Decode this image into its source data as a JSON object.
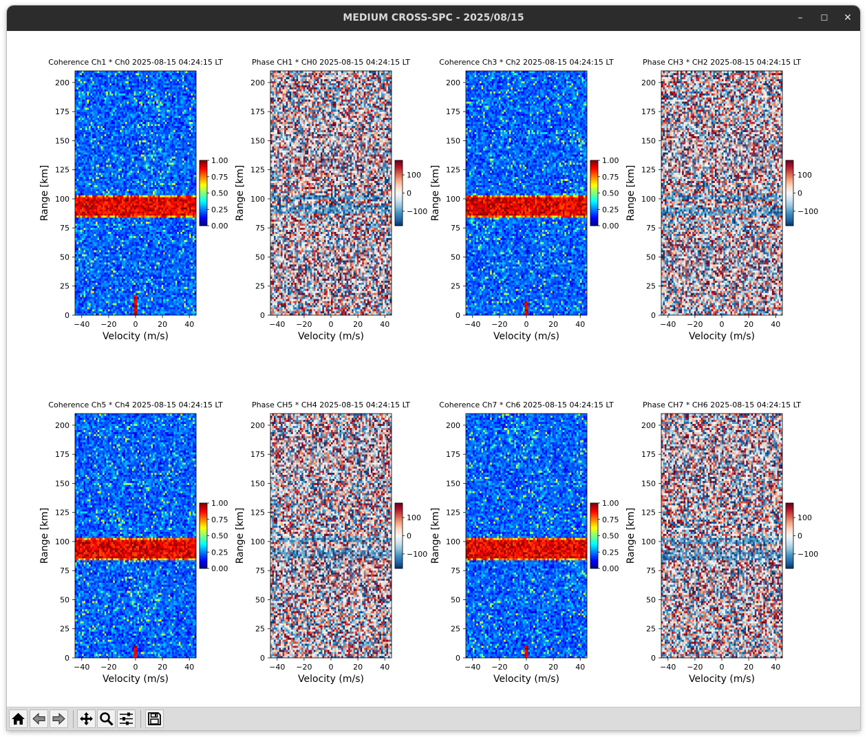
{
  "window": {
    "title": "MEDIUM CROSS-SPC - 2025/08/15",
    "controls": {
      "minimize": "–",
      "maximize": "☐",
      "close": "✕"
    }
  },
  "toolbar": {
    "buttons": [
      "home-icon",
      "back-arrow-icon",
      "forward-arrow-icon",
      "pan-icon",
      "zoom-icon",
      "configure-subplots-icon",
      "save-icon"
    ]
  },
  "colors": {
    "titlebar": "#2c2c2c",
    "toolbar": "#dcdcdc",
    "coherence_colormap": "jet",
    "phase_colormap": "RdBu_r"
  },
  "chart_data": [
    {
      "type": "heatmap",
      "kind": "coherence",
      "title": "Coherence Ch1 * Ch0 2025-08-15 04:24:15 LT",
      "xlabel": "Velocity (m/s)",
      "ylabel": "Range [km]",
      "xlim": [
        -45,
        45
      ],
      "ylim": [
        0,
        210
      ],
      "xticks": [
        -40,
        -20,
        0,
        20,
        40
      ],
      "yticks": [
        0,
        25,
        50,
        75,
        100,
        125,
        150,
        175,
        200
      ],
      "colorbar": {
        "range": [
          0,
          1
        ],
        "ticks": [
          0.0,
          0.25,
          0.5,
          0.75,
          1.0
        ],
        "tick_labels": [
          "0.00",
          "0.25",
          "0.50",
          "0.75",
          "1.00"
        ]
      },
      "features": {
        "coherent_layer_km": [
          84,
          104
        ],
        "zero_velocity_echo_km": [
          0,
          17
        ]
      }
    },
    {
      "type": "heatmap",
      "kind": "phase",
      "title": "Phase CH1 * CH0 2025-08-15 04:24:15 LT",
      "xlabel": "Velocity (m/s)",
      "ylabel": "Range [km]",
      "xlim": [
        -45,
        45
      ],
      "ylim": [
        0,
        210
      ],
      "xticks": [
        -40,
        -20,
        0,
        20,
        40
      ],
      "yticks": [
        0,
        25,
        50,
        75,
        100,
        125,
        150,
        175,
        200
      ],
      "colorbar": {
        "range": [
          -180,
          180
        ],
        "ticks": [
          -100,
          0,
          100
        ],
        "tick_labels": [
          "−100",
          "0",
          "100"
        ]
      },
      "features": {
        "phase_bands_km": [
          [
            88,
            94
          ],
          [
            100,
            104
          ]
        ]
      }
    },
    {
      "type": "heatmap",
      "kind": "coherence",
      "title": "Coherence Ch3 * Ch2 2025-08-15 04:24:15 LT",
      "xlabel": "Velocity (m/s)",
      "ylabel": "Range [km]",
      "xlim": [
        -45,
        45
      ],
      "ylim": [
        0,
        210
      ],
      "xticks": [
        -40,
        -20,
        0,
        20,
        40
      ],
      "yticks": [
        0,
        25,
        50,
        75,
        100,
        125,
        150,
        175,
        200
      ],
      "colorbar": {
        "range": [
          0,
          1
        ],
        "ticks": [
          0.0,
          0.25,
          0.5,
          0.75,
          1.0
        ],
        "tick_labels": [
          "0.00",
          "0.25",
          "0.50",
          "0.75",
          "1.00"
        ]
      },
      "features": {
        "coherent_layer_km": [
          84,
          104
        ],
        "zero_velocity_echo_km": [
          0,
          12
        ]
      }
    },
    {
      "type": "heatmap",
      "kind": "phase",
      "title": "Phase CH3 * CH2 2025-08-15 04:24:15 LT",
      "xlabel": "Velocity (m/s)",
      "ylabel": "Range [km]",
      "xlim": [
        -45,
        45
      ],
      "ylim": [
        0,
        210
      ],
      "xticks": [
        -40,
        -20,
        0,
        20,
        40
      ],
      "yticks": [
        0,
        25,
        50,
        75,
        100,
        125,
        150,
        175,
        200
      ],
      "colorbar": {
        "range": [
          -180,
          180
        ],
        "ticks": [
          -100,
          0,
          100
        ],
        "tick_labels": [
          "−100",
          "0",
          "100"
        ]
      },
      "features": {
        "phase_bands_km": [
          [
            86,
            93
          ],
          [
            100,
            104
          ]
        ]
      }
    },
    {
      "type": "heatmap",
      "kind": "coherence",
      "title": "Coherence Ch5 * Ch4 2025-08-15 04:24:15 LT",
      "xlabel": "Velocity (m/s)",
      "ylabel": "Range [km]",
      "xlim": [
        -45,
        45
      ],
      "ylim": [
        0,
        210
      ],
      "xticks": [
        -40,
        -20,
        0,
        20,
        40
      ],
      "yticks": [
        0,
        25,
        50,
        75,
        100,
        125,
        150,
        175,
        200
      ],
      "colorbar": {
        "range": [
          0,
          1
        ],
        "ticks": [
          0.0,
          0.25,
          0.5,
          0.75,
          1.0
        ],
        "tick_labels": [
          "0.00",
          "0.25",
          "0.50",
          "0.75",
          "1.00"
        ]
      },
      "features": {
        "coherent_layer_km": [
          84,
          104
        ],
        "zero_velocity_echo_km": [
          0,
          10
        ]
      }
    },
    {
      "type": "heatmap",
      "kind": "phase",
      "title": "Phase CH5 * CH4 2025-08-15 04:24:15 LT",
      "xlabel": "Velocity (m/s)",
      "ylabel": "Range [km]",
      "xlim": [
        -45,
        45
      ],
      "ylim": [
        0,
        210
      ],
      "xticks": [
        -40,
        -20,
        0,
        20,
        40
      ],
      "yticks": [
        0,
        25,
        50,
        75,
        100,
        125,
        150,
        175,
        200
      ],
      "colorbar": {
        "range": [
          -180,
          180
        ],
        "ticks": [
          -100,
          0,
          100
        ],
        "tick_labels": [
          "−100",
          "0",
          "100"
        ]
      },
      "features": {
        "phase_bands_km": [
          [
            86,
            92
          ],
          [
            99,
            104
          ]
        ]
      }
    },
    {
      "type": "heatmap",
      "kind": "coherence",
      "title": "Coherence Ch7 * Ch6 2025-08-15 04:24:15 LT",
      "xlabel": "Velocity (m/s)",
      "ylabel": "Range [km]",
      "xlim": [
        -45,
        45
      ],
      "ylim": [
        0,
        210
      ],
      "xticks": [
        -40,
        -20,
        0,
        20,
        40
      ],
      "yticks": [
        0,
        25,
        50,
        75,
        100,
        125,
        150,
        175,
        200
      ],
      "colorbar": {
        "range": [
          0,
          1
        ],
        "ticks": [
          0.0,
          0.25,
          0.5,
          0.75,
          1.0
        ],
        "tick_labels": [
          "0.00",
          "0.25",
          "0.50",
          "0.75",
          "1.00"
        ]
      },
      "features": {
        "coherent_layer_km": [
          84,
          104
        ],
        "zero_velocity_echo_km": [
          0,
          10
        ]
      }
    },
    {
      "type": "heatmap",
      "kind": "phase",
      "title": "Phase CH7 * CH6 2025-08-15 04:24:15 LT",
      "xlabel": "Velocity (m/s)",
      "ylabel": "Range [km]",
      "xlim": [
        -45,
        45
      ],
      "ylim": [
        0,
        210
      ],
      "xticks": [
        -40,
        -20,
        0,
        20,
        40
      ],
      "yticks": [
        0,
        25,
        50,
        75,
        100,
        125,
        150,
        175,
        200
      ],
      "colorbar": {
        "range": [
          -180,
          180
        ],
        "ticks": [
          -100,
          0,
          100
        ],
        "tick_labels": [
          "−100",
          "0",
          "100"
        ]
      },
      "features": {
        "phase_bands_km": [
          [
            84,
            92
          ],
          [
            98,
            103
          ]
        ]
      }
    }
  ]
}
